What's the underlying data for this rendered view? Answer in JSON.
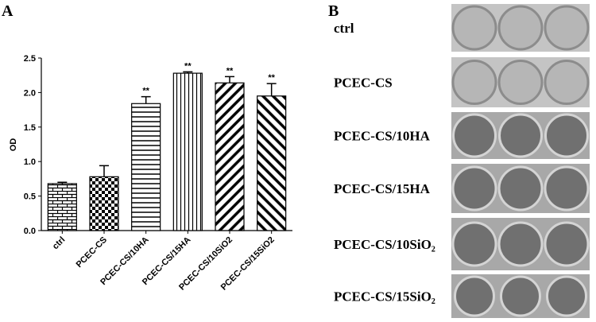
{
  "chart_data": {
    "type": "bar",
    "panel_label": "A",
    "ylabel": "OD",
    "categories": [
      "ctrl",
      "PCEC-CS",
      "PCEC-CS/10HA",
      "PCEC-CS/15HA",
      "PCEC-CS/10SiO2",
      "PCEC-CS/15SiO2"
    ],
    "values": [
      0.68,
      0.78,
      1.84,
      2.28,
      2.14,
      1.95
    ],
    "errors": [
      0.02,
      0.16,
      0.1,
      0.02,
      0.09,
      0.18
    ],
    "annotations": [
      null,
      null,
      "**",
      "**",
      "**",
      "**"
    ],
    "patterns": [
      "brick",
      "checker",
      "horizontal",
      "vertical",
      "diagonal-up",
      "diagonal-down"
    ],
    "color": "#000000",
    "ylim": [
      0,
      2.5
    ],
    "yticks": [
      {
        "value": 0,
        "label": "0.0"
      },
      0.5,
      {
        "value": 1,
        "label": "1.0"
      },
      1.5,
      {
        "value": 2,
        "label": "2.0"
      },
      2.5
    ]
  },
  "panel_b": {
    "label": "B",
    "rows": [
      "ctrl",
      "PCEC-CS",
      "PCEC-CS/10HA",
      "PCEC-CS/15HA",
      "PCEC-CS/10SiO₂",
      "PCEC-CS/15SiO₂"
    ]
  }
}
